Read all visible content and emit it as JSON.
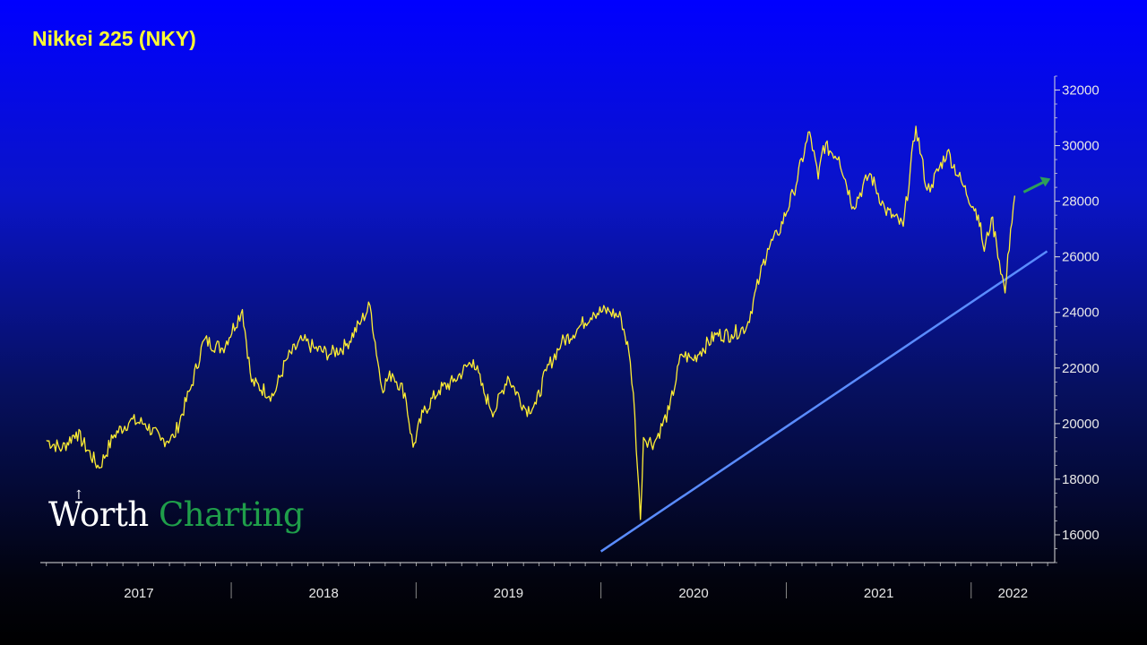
{
  "title": "Nikkei 225 (NKY)",
  "logo": {
    "word1": "Worth",
    "word2": "Charting",
    "word2_color": "#1f9e4a"
  },
  "colors": {
    "price_line": "#ffee33",
    "trendline": "#5a8cff",
    "arrow": "#2e9e5a",
    "axis": "#dddddd"
  },
  "chart_data": {
    "type": "line",
    "series": [
      {
        "x": [
          "2017-01-01",
          "2017-02-01",
          "2017-03-01",
          "2017-04-15",
          "2017-05-15",
          "2017-06-15",
          "2017-07-15",
          "2017-08-15",
          "2017-09-10",
          "2017-10-15",
          "2017-11-08",
          "2017-12-15",
          "2018-01-23",
          "2018-02-10",
          "2018-03-25",
          "2018-04-20",
          "2018-05-21",
          "2018-06-15",
          "2018-07-15",
          "2018-08-15",
          "2018-09-15",
          "2018-10-02",
          "2018-10-25",
          "2018-11-15",
          "2018-12-10",
          "2018-12-26",
          "2019-01-15",
          "2019-02-15",
          "2019-03-15",
          "2019-04-24",
          "2019-05-15",
          "2019-06-04",
          "2019-07-01",
          "2019-08-06",
          "2019-08-26",
          "2019-09-15",
          "2019-10-15",
          "2019-11-15",
          "2019-12-17",
          "2020-01-17",
          "2020-02-10",
          "2020-02-25",
          "2020-03-05",
          "2020-03-19",
          "2020-03-25",
          "2020-04-15",
          "2020-05-15",
          "2020-06-08",
          "2020-06-30",
          "2020-07-15",
          "2020-08-15",
          "2020-09-15",
          "2020-10-15",
          "2020-11-10",
          "2020-11-25",
          "2020-12-15",
          "2021-01-15",
          "2021-02-16",
          "2021-03-05",
          "2021-03-15",
          "2021-04-15",
          "2021-05-13",
          "2021-06-15",
          "2021-07-15",
          "2021-08-20",
          "2021-09-14",
          "2021-10-06",
          "2021-10-15",
          "2021-11-15",
          "2021-12-15",
          "2022-01-15",
          "2022-01-27",
          "2022-02-10",
          "2022-02-20",
          "2022-03-09",
          "2022-03-20",
          "2022-03-28"
        ],
        "y": [
          19400,
          19100,
          19700,
          18400,
          19600,
          20100,
          20000,
          19400,
          19500,
          21400,
          23000,
          22700,
          24100,
          21500,
          21000,
          22300,
          23000,
          22700,
          22500,
          22800,
          23700,
          24250,
          21300,
          21800,
          21100,
          19150,
          20400,
          21200,
          21500,
          22300,
          21100,
          20400,
          21700,
          20500,
          20700,
          21900,
          22900,
          23400,
          24000,
          24050,
          23800,
          22600,
          21100,
          16550,
          19500,
          19300,
          20500,
          22500,
          22300,
          22600,
          23200,
          23200,
          23500,
          25300,
          26300,
          26800,
          28300,
          30500,
          28800,
          30000,
          29600,
          27800,
          29000,
          27700,
          27100,
          30700,
          28400,
          28600,
          29800,
          28600,
          27500,
          26200,
          27400,
          26500,
          24700,
          27000,
          28200
        ]
      }
    ],
    "title": "Nikkei 225 (NKY)",
    "xlabel": "",
    "ylabel": "",
    "ylim": [
      15000,
      32500
    ],
    "yticks": [
      "16000",
      "18000",
      "20000",
      "22000",
      "24000",
      "26000",
      "28000",
      "30000",
      "32000"
    ],
    "xticks": [
      "2017",
      "2018",
      "2019",
      "2020",
      "2021",
      "2022"
    ],
    "trendline": {
      "x": [
        "2020-01-01",
        "2022-05-31"
      ],
      "y": [
        15400,
        26200
      ]
    },
    "annotations": [
      "upward arrow after last price (continuation)"
    ],
    "grid": false,
    "yaxis_side": "right"
  }
}
